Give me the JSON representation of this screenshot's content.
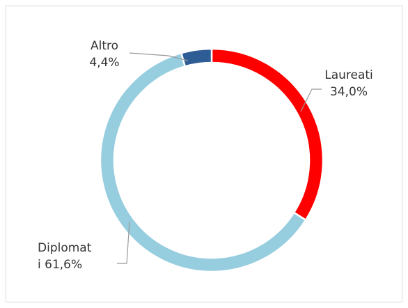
{
  "chart_data": {
    "type": "donut",
    "categories": [
      "Laureati",
      "Diplomati",
      "Altro"
    ],
    "values": [
      34.0,
      61.6,
      4.4
    ],
    "value_labels": [
      "34,0%",
      "61,6%",
      "4,4%"
    ],
    "colors": [
      "#ff0000",
      "#96cddf",
      "#2e5c94"
    ]
  }
}
